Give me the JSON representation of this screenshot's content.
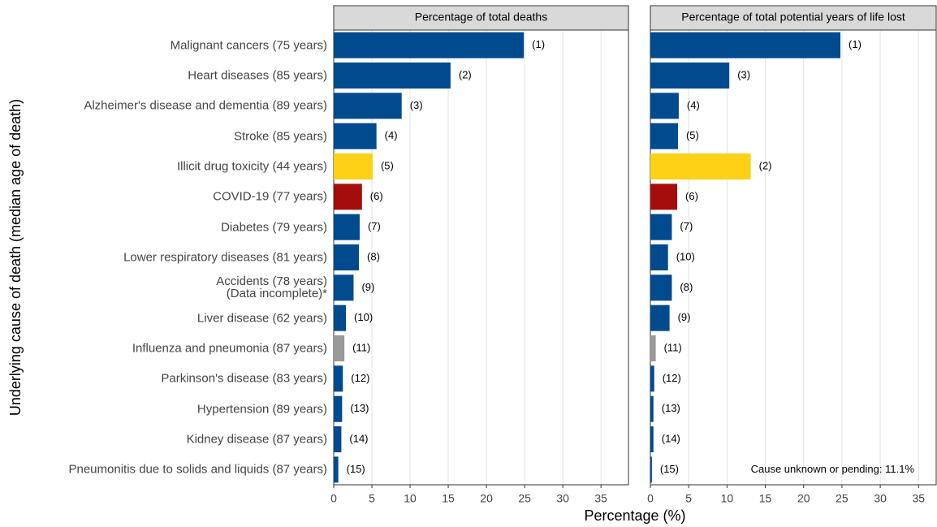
{
  "chart_data": [
    {
      "type": "bar",
      "orientation": "horizontal",
      "title": "Percentage of total deaths",
      "xlabel": "Percentage (%)",
      "ylabel": "Underlying cause of death (median age of death)",
      "categories": [
        "Malignant cancers (75 years)",
        "Heart diseases (85 years)",
        "Alzheimer's disease and dementia (89 years)",
        "Stroke (85 years)",
        "Illicit drug toxicity (44 years)",
        "COVID-19 (77 years)",
        "Diabetes (79 years)",
        "Lower respiratory diseases (81 years)",
        "Accidents (78 years)\n(Data incomplete)*",
        "Liver disease (62 years)",
        "Influenza and pneumonia (87 years)",
        "Parkinson's disease (83 years)",
        "Hypertension (89 years)",
        "Kidney disease (87 years)",
        "Pneumonitis due to solids and liquids (87 years)"
      ],
      "values": [
        24.9,
        15.3,
        8.9,
        5.6,
        5.1,
        3.7,
        3.4,
        3.3,
        2.6,
        1.6,
        1.4,
        1.2,
        1.1,
        1.0,
        0.6
      ],
      "rank_labels": [
        "(1)",
        "(2)",
        "(3)",
        "(4)",
        "(5)",
        "(6)",
        "(7)",
        "(8)",
        "(9)",
        "(10)",
        "(11)",
        "(12)",
        "(13)",
        "(14)",
        "(15)"
      ],
      "colors": [
        "#004a8d",
        "#004a8d",
        "#004a8d",
        "#004a8d",
        "#fcd116",
        "#a50d0d",
        "#004a8d",
        "#004a8d",
        "#004a8d",
        "#004a8d",
        "#999999",
        "#004a8d",
        "#004a8d",
        "#004a8d",
        "#004a8d"
      ],
      "xlim": [
        0,
        38.6
      ],
      "xticks": [
        0,
        5,
        10,
        15,
        20,
        25,
        30,
        35
      ],
      "grid": true
    },
    {
      "type": "bar",
      "orientation": "horizontal",
      "title": "Percentage of total potential years of life lost",
      "annotation": "Cause unknown or pending: 11.1%",
      "values": [
        24.8,
        10.3,
        3.7,
        3.6,
        13.1,
        3.5,
        2.8,
        2.3,
        2.8,
        2.5,
        0.7,
        0.5,
        0.4,
        0.4,
        0.2
      ],
      "rank_labels": [
        "(1)",
        "(3)",
        "(4)",
        "(5)",
        "(2)",
        "(6)",
        "(7)",
        "(10)",
        "(8)",
        "(9)",
        "(11)",
        "(12)",
        "(13)",
        "(14)",
        "(15)"
      ],
      "colors": [
        "#004a8d",
        "#004a8d",
        "#004a8d",
        "#004a8d",
        "#fcd116",
        "#a50d0d",
        "#004a8d",
        "#004a8d",
        "#004a8d",
        "#004a8d",
        "#999999",
        "#004a8d",
        "#004a8d",
        "#004a8d",
        "#004a8d"
      ],
      "xlim": [
        0,
        37.3
      ],
      "xticks": [
        0,
        5,
        10,
        15,
        20,
        25,
        30,
        35
      ],
      "grid": true
    }
  ]
}
